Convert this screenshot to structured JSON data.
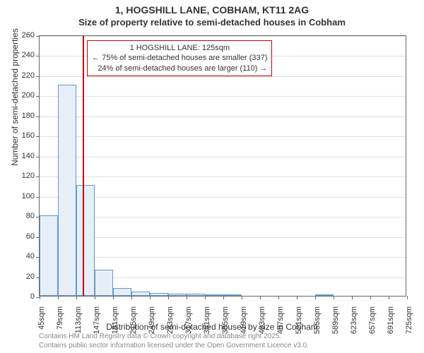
{
  "title": "1, HOGSHILL LANE, COBHAM, KT11 2AG",
  "subtitle": "Size of property relative to semi-detached houses in Cobham",
  "y_axis_label": "Number of semi-detached properties",
  "x_axis_label": "Distribution of semi-detached houses by size in Cobham",
  "attribution_line1": "Contains HM Land Registry data © Crown copyright and database right 2025.",
  "attribution_line2": "Contains public sector information licensed under the Open Government Licence v3.0.",
  "chart": {
    "type": "histogram",
    "ylim": [
      0,
      260
    ],
    "ytick_step": 20,
    "y_ticks": [
      0,
      20,
      40,
      60,
      80,
      100,
      120,
      140,
      160,
      180,
      200,
      220,
      240,
      260
    ],
    "x_ticks": [
      "45sqm",
      "79sqm",
      "113sqm",
      "147sqm",
      "181sqm",
      "215sqm",
      "249sqm",
      "283sqm",
      "317sqm",
      "351sqm",
      "385sqm",
      "419sqm",
      "453sqm",
      "487sqm",
      "521sqm",
      "555sqm",
      "589sqm",
      "623sqm",
      "657sqm",
      "691sqm",
      "725sqm"
    ],
    "x_min": 45,
    "x_max": 725,
    "bar_bin_width": 34,
    "bars": [
      {
        "start": 45,
        "value": 80
      },
      {
        "start": 79,
        "value": 210
      },
      {
        "start": 113,
        "value": 110
      },
      {
        "start": 147,
        "value": 26
      },
      {
        "start": 181,
        "value": 8
      },
      {
        "start": 215,
        "value": 4
      },
      {
        "start": 249,
        "value": 3
      },
      {
        "start": 283,
        "value": 2
      },
      {
        "start": 317,
        "value": 2
      },
      {
        "start": 351,
        "value": 1
      },
      {
        "start": 385,
        "value": 1
      },
      {
        "start": 555,
        "value": 1
      }
    ],
    "bar_fill": "#e6eef7",
    "bar_stroke": "#6699cc",
    "grid_color": "#e0e0e0",
    "background_color": "#ffffff",
    "axis_color": "#666666",
    "reference_line": {
      "value": 125,
      "color": "#cc0000"
    },
    "annotation": {
      "line1": "1 HOGSHILL LANE: 125sqm",
      "line2": "← 75% of semi-detached houses are smaller (337)",
      "line3": "24% of semi-detached houses are larger (110) →",
      "border_color": "#cc0000",
      "background": "#ffffff",
      "fontsize": 11
    },
    "title_fontsize": 14,
    "subtitle_fontsize": 13,
    "axis_label_fontsize": 12,
    "tick_fontsize": 11,
    "attribution_color": "#888888"
  }
}
